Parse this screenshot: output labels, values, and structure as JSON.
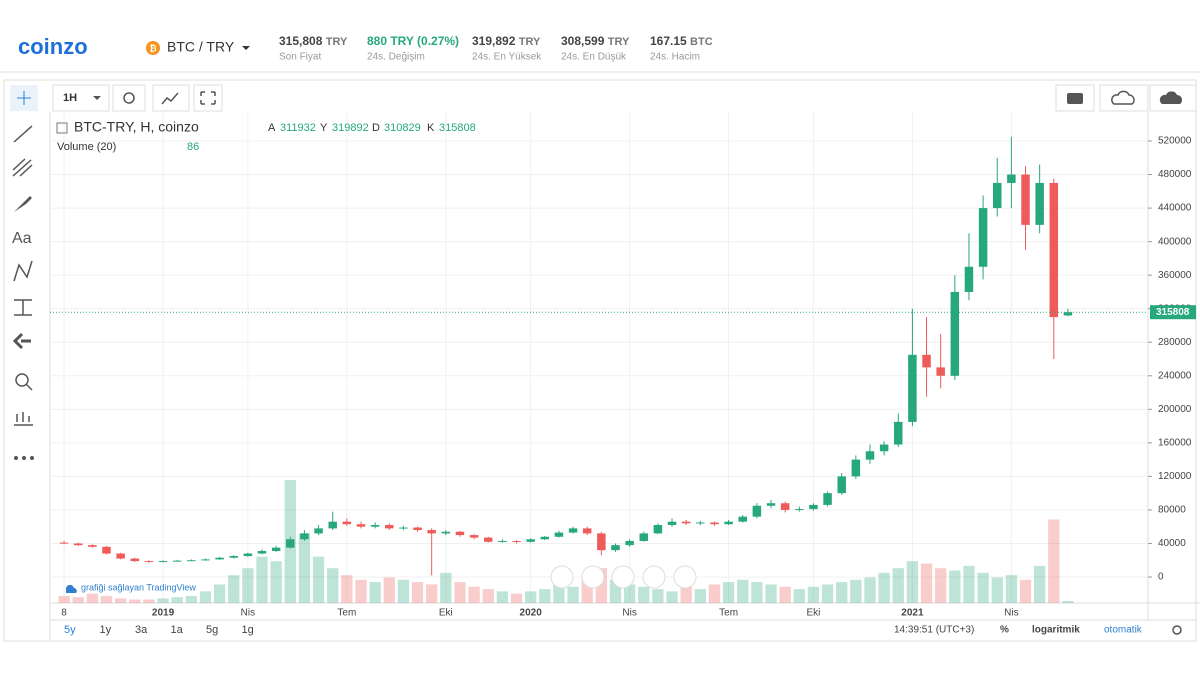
{
  "header": {
    "logo": "coinzo",
    "pair": "BTC / TRY",
    "stats": [
      {
        "value": "315,808",
        "unit": "TRY",
        "label": "Son Fiyat"
      },
      {
        "value": "880 TRY (0.27%)",
        "unit": "",
        "label": "24s. Değişim"
      },
      {
        "value": "319,892",
        "unit": "TRY",
        "label": "24s. En Yüksek"
      },
      {
        "value": "308,599",
        "unit": "TRY",
        "label": "24s. En Düşük"
      },
      {
        "value": "167.15",
        "unit": "BTC",
        "label": "24s. Hacim"
      }
    ]
  },
  "toolbar": {
    "interval": "1H",
    "text_tool": "Aa"
  },
  "chart_data": {
    "type": "candlestick",
    "title": "BTC-TRY, H, coinzo",
    "ohlc_letters": [
      "A",
      "Y",
      "D",
      "K"
    ],
    "volume_title": "Volume (20)",
    "attribution": "grafiği sağlayan TradingView",
    "up_color": "#26a77c",
    "down_color": "#ef5b5b",
    "ylim": [
      -31000,
      554600
    ],
    "yticks": [
      0,
      40000,
      80000,
      120000,
      160000,
      200000,
      240000,
      280000,
      320000,
      360000,
      400000,
      440000,
      480000,
      520000
    ],
    "grid": true,
    "categories": [
      "8",
      null,
      null,
      null,
      null,
      null,
      null,
      "2019",
      null,
      null,
      null,
      null,
      null,
      "Nis",
      null,
      null,
      null,
      null,
      null,
      null,
      "Tem",
      null,
      null,
      null,
      null,
      null,
      null,
      "Eki",
      null,
      null,
      null,
      null,
      null,
      "2020",
      null,
      null,
      null,
      null,
      null,
      null,
      "Nis",
      null,
      null,
      null,
      null,
      null,
      null,
      "Tem",
      null,
      null,
      null,
      null,
      null,
      "Eki",
      null,
      null,
      null,
      null,
      null,
      null,
      "2021",
      null,
      null,
      null,
      null,
      null,
      null,
      "Nis",
      null,
      null,
      null,
      null
    ],
    "open": [
      41000,
      40000,
      38000,
      36000,
      28000,
      22000,
      19000,
      18000,
      19000,
      19500,
      20000,
      21000,
      23000,
      25000,
      28000,
      31000,
      35000,
      45000,
      52000,
      58000,
      66000,
      63000,
      60000,
      62000,
      58000,
      59000,
      56000,
      52000,
      54000,
      50000,
      47000,
      42000,
      43000,
      42000,
      45000,
      48000,
      53000,
      58000,
      52000,
      32000,
      38000,
      43000,
      52000,
      62000,
      66000,
      64000,
      65000,
      63000,
      66000,
      72000,
      85000,
      88000,
      80000,
      81000,
      86000,
      100000,
      120000,
      140000,
      150000,
      158000,
      185000,
      265000,
      250000,
      240000,
      340000,
      370000,
      440000,
      470000,
      480000,
      420000,
      470000,
      311932
    ],
    "high": [
      43000,
      41000,
      39000,
      37000,
      29000,
      23000,
      20000,
      20000,
      20500,
      21000,
      22000,
      24000,
      26000,
      29000,
      33000,
      37000,
      48000,
      56000,
      62000,
      78000,
      70000,
      66000,
      65000,
      64000,
      61000,
      60000,
      58000,
      56000,
      55000,
      51000,
      48000,
      45000,
      44000,
      46000,
      49000,
      55000,
      60000,
      60000,
      54000,
      40000,
      45000,
      54000,
      64000,
      70000,
      68000,
      67000,
      66000,
      68000,
      74000,
      88000,
      92000,
      90000,
      84000,
      88000,
      102000,
      124000,
      145000,
      158000,
      162000,
      195000,
      320000,
      310000,
      290000,
      360000,
      410000,
      455000,
      500000,
      525000,
      490000,
      492000,
      475000,
      319892
    ],
    "low": [
      39000,
      37000,
      35000,
      27000,
      21000,
      18000,
      17000,
      17500,
      18500,
      19000,
      19500,
      20500,
      22000,
      24000,
      27000,
      30000,
      34000,
      43000,
      50000,
      56000,
      61000,
      58000,
      58000,
      56000,
      56000,
      54000,
      2000,
      50000,
      48000,
      45000,
      41000,
      41000,
      40000,
      41000,
      44000,
      47000,
      52000,
      50000,
      26000,
      30000,
      36000,
      42000,
      51000,
      60000,
      62000,
      62000,
      61000,
      62000,
      65000,
      70000,
      82000,
      77000,
      78000,
      79000,
      84000,
      98000,
      117000,
      135000,
      145000,
      155000,
      180000,
      215000,
      225000,
      235000,
      330000,
      355000,
      430000,
      440000,
      390000,
      410000,
      260000,
      310829
    ],
    "close": [
      40000,
      38000,
      36000,
      28000,
      22000,
      19000,
      18000,
      19000,
      19500,
      20000,
      21000,
      23000,
      25000,
      28000,
      31000,
      35000,
      45000,
      52000,
      58000,
      66000,
      63000,
      60000,
      62000,
      58000,
      59000,
      56000,
      52000,
      54000,
      50000,
      47000,
      42000,
      43000,
      42000,
      45000,
      48000,
      53000,
      58000,
      52000,
      32000,
      38000,
      43000,
      52000,
      62000,
      66000,
      64000,
      65000,
      63000,
      66000,
      72000,
      85000,
      88000,
      80000,
      81000,
      86000,
      100000,
      120000,
      140000,
      150000,
      158000,
      185000,
      265000,
      250000,
      240000,
      340000,
      370000,
      440000,
      470000,
      480000,
      420000,
      470000,
      310000,
      315808
    ],
    "volumes": [
      300,
      250,
      400,
      300,
      200,
      150,
      150,
      200,
      250,
      300,
      500,
      800,
      1200,
      1500,
      2000,
      1800,
      5300,
      3000,
      2000,
      1500,
      1200,
      1000,
      900,
      1100,
      1000,
      900,
      800,
      1300,
      900,
      700,
      600,
      500,
      400,
      500,
      600,
      800,
      700,
      1200,
      1500,
      1000,
      800,
      700,
      600,
      500,
      700,
      600,
      800,
      900,
      1000,
      900,
      800,
      700,
      600,
      700,
      800,
      900,
      1000,
      1100,
      1300,
      1500,
      1800,
      1700,
      1500,
      1400,
      1600,
      1300,
      1100,
      1200,
      1000,
      1600,
      3600,
      86
    ]
  },
  "footer": {
    "ranges": [
      "5y",
      "1y",
      "3a",
      "1a",
      "5g",
      "1g"
    ],
    "clock": "14:39:51 (UTC+3)",
    "percent": "%",
    "log": "logaritmik",
    "auto": "otomatik"
  }
}
